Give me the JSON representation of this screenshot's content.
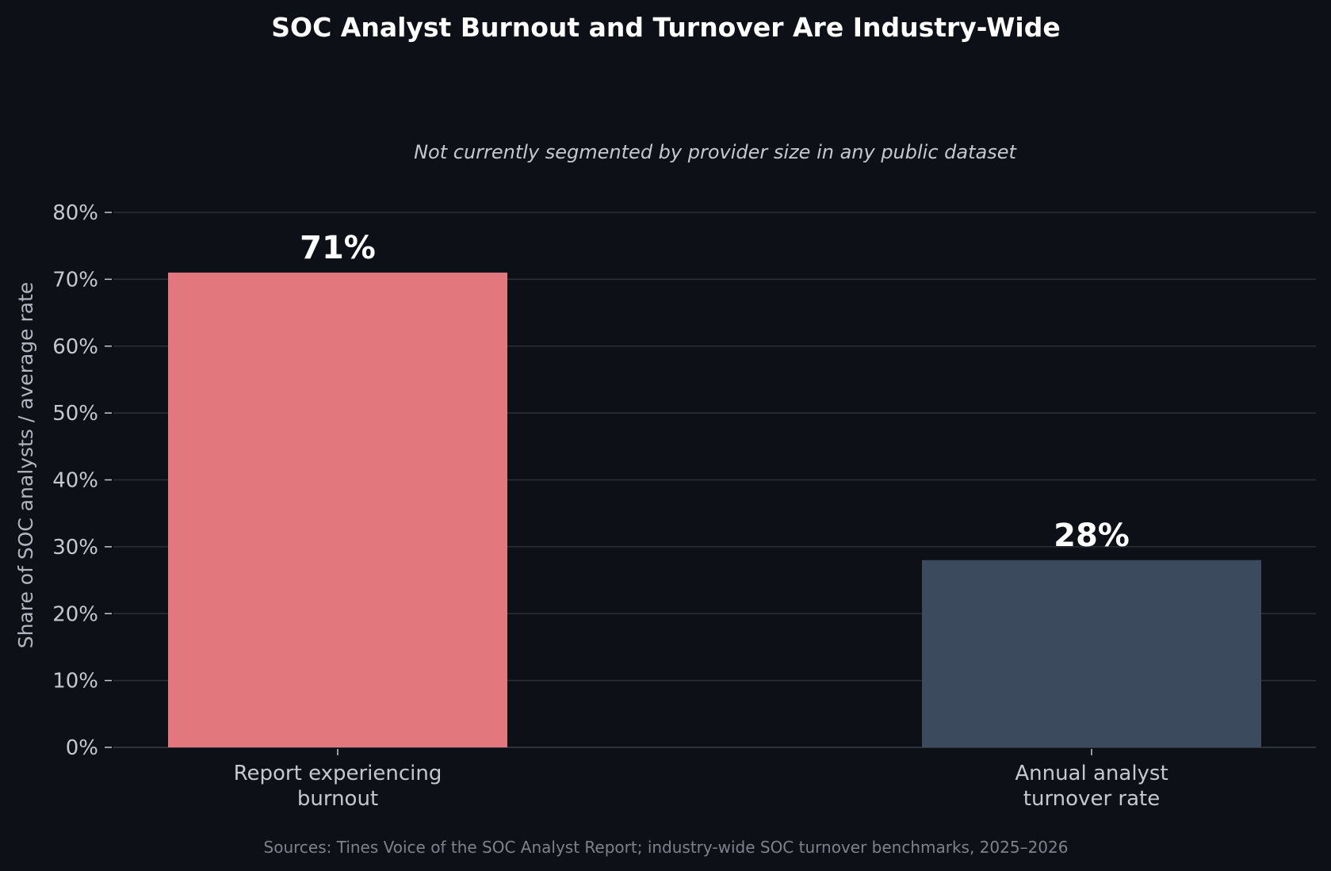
{
  "chart_data": {
    "type": "bar",
    "title": "SOC Analyst Burnout and Turnover Are Industry-Wide",
    "subtitle": "Not currently segmented by provider size in any public dataset",
    "ylabel": "Share of SOC analysts / average rate",
    "xlabel": "",
    "source": "Sources: Tines Voice of the SOC Analyst Report; industry-wide SOC turnover benchmarks, 2025–2026",
    "ylim": [
      0,
      80
    ],
    "y_ticks": [
      0,
      10,
      20,
      30,
      40,
      50,
      60,
      70,
      80
    ],
    "y_tick_labels": [
      "0%",
      "10%",
      "20%",
      "30%",
      "40%",
      "50%",
      "60%",
      "70%",
      "80%"
    ],
    "grid": true,
    "categories": [
      [
        "Report experiencing",
        "burnout"
      ],
      [
        "Annual analyst",
        "turnover rate"
      ]
    ],
    "values": [
      71,
      28
    ],
    "value_labels": [
      "71%",
      "28%"
    ],
    "colors": [
      "#e2787d",
      "#3b4a5d"
    ],
    "background": "#0d1017"
  }
}
